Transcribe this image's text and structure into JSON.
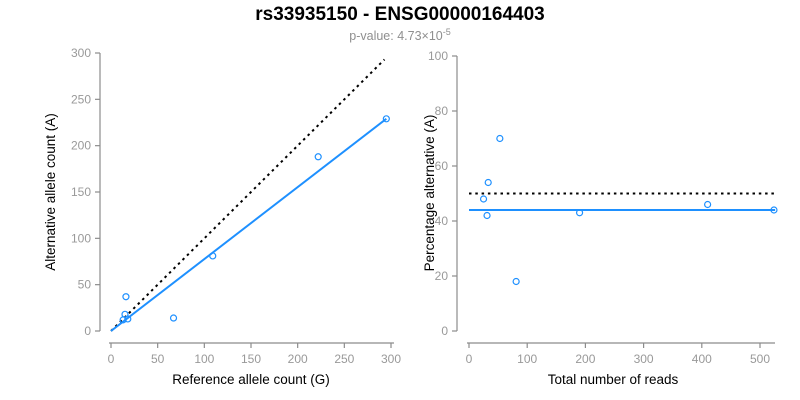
{
  "header": {
    "title": "rs33935150 - ENSG00000164403",
    "p_value_prefix": "p-value: 4.73×10",
    "p_value_exponent": "-5"
  },
  "colors": {
    "accent_blue": "#1E90FF",
    "reference_black": "#000000",
    "axis_gray": "#8C8C8C",
    "tick_label_gray": "#999999",
    "subtitle_gray": "#8F8F8F"
  },
  "chart_data": [
    {
      "type": "scatter",
      "panel": "allele-counts",
      "xlabel": "Reference allele count (G)",
      "ylabel": "Alternative allele count (A)",
      "xlim": [
        0,
        300
      ],
      "ylim": [
        0,
        300
      ],
      "xticks": [
        0,
        50,
        100,
        150,
        200,
        250,
        300
      ],
      "yticks": [
        0,
        50,
        100,
        150,
        200,
        250,
        300
      ],
      "grid": false,
      "legend": "none",
      "points": [
        [
          13,
          12
        ],
        [
          18,
          13
        ],
        [
          15,
          18
        ],
        [
          16,
          37
        ],
        [
          67,
          14
        ],
        [
          109,
          81
        ],
        [
          222,
          188
        ],
        [
          295,
          229
        ]
      ],
      "lines": [
        {
          "name": "identity-line",
          "style": "dotted",
          "color": "#000000",
          "from": [
            0,
            0
          ],
          "to": [
            293,
            293
          ]
        },
        {
          "name": "fit-line",
          "style": "solid",
          "color": "#1E90FF",
          "from": [
            0,
            0
          ],
          "to": [
            295,
            229
          ]
        }
      ]
    },
    {
      "type": "scatter",
      "panel": "percentage-vs-reads",
      "xlabel": "Total number of reads",
      "ylabel": "Percentage alternative (A)",
      "xlim": [
        0,
        500
      ],
      "ylim": [
        0,
        100
      ],
      "xticks": [
        0,
        100,
        200,
        300,
        400,
        500
      ],
      "yticks": [
        0,
        20,
        40,
        60,
        80,
        100
      ],
      "grid": false,
      "legend": "none",
      "points": [
        [
          25,
          48
        ],
        [
          31,
          42
        ],
        [
          33,
          54
        ],
        [
          53,
          70
        ],
        [
          81,
          18
        ],
        [
          190,
          43
        ],
        [
          410,
          46
        ],
        [
          524,
          44
        ]
      ],
      "lines": [
        {
          "name": "expected-50pct-line",
          "style": "dotted",
          "color": "#000000",
          "from": [
            0,
            50
          ],
          "to": [
            526,
            50
          ]
        },
        {
          "name": "fit-line",
          "style": "solid",
          "color": "#1E90FF",
          "from": [
            0,
            44
          ],
          "to": [
            526,
            44
          ]
        }
      ]
    }
  ]
}
